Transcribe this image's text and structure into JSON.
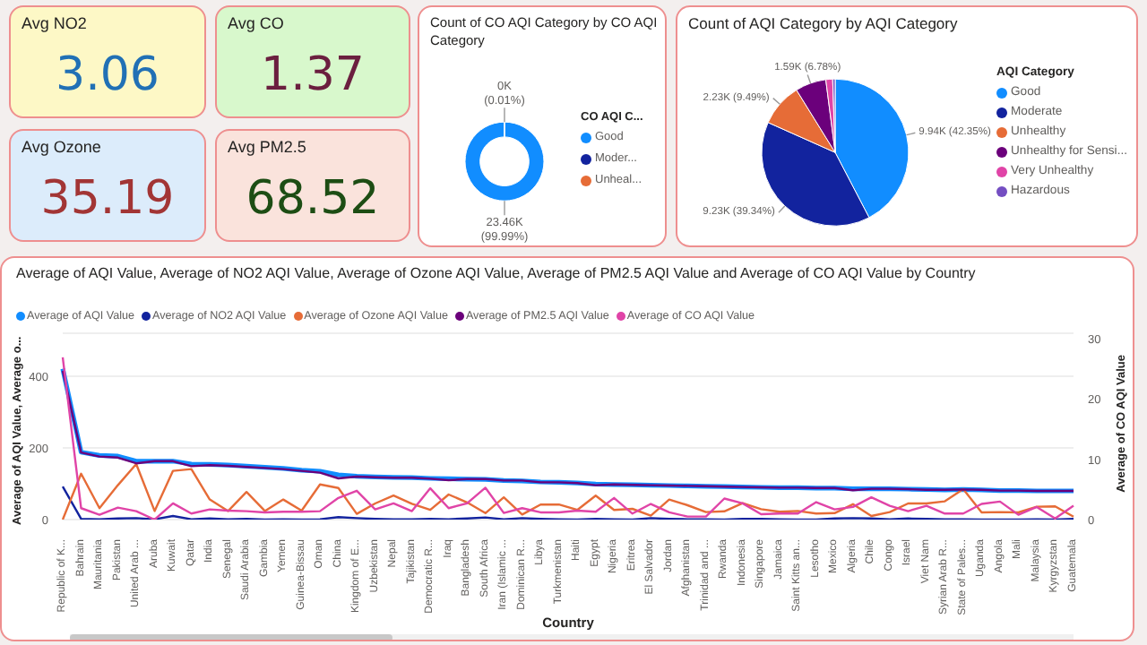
{
  "chart_data": [
    {
      "type": "other",
      "title": "Avg NO2",
      "values": [
        3.06
      ],
      "color": "#fdf8c6",
      "data_labels": true
    },
    {
      "type": "other",
      "title": "Avg CO",
      "values": [
        1.37
      ],
      "color": "#d8f8cc",
      "data_labels": true
    },
    {
      "type": "other",
      "title": "Avg Ozone",
      "values": [
        35.19
      ],
      "color": "#dcecfb",
      "data_labels": true
    },
    {
      "type": "other",
      "title": "Avg PM2.5",
      "values": [
        68.52
      ],
      "color": "#fae3dc",
      "data_labels": true
    },
    {
      "type": "donut",
      "title": "Count of CO AQI Category by CO AQI Category",
      "legend_title": "CO AQI C...",
      "legend": "right",
      "categories": [
        "Good",
        "Moder...",
        "Unheal..."
      ],
      "values": [
        99.99,
        0.01,
        0
      ],
      "colors": [
        "#118dff",
        "#12239e",
        "#e66c37"
      ],
      "value_labels": [
        "23.46K (99.99%)",
        "0K (0.01%)",
        null
      ]
    },
    {
      "type": "pie",
      "title": "Count of AQI Category by AQI Category",
      "legend_title": "AQI Category",
      "legend": "right",
      "categories": [
        "Good",
        "Moderate",
        "Unhealthy",
        "Unhealthy for Sensi...",
        "Very Unhealthy",
        "Hazardous"
      ],
      "values": [
        42.35,
        39.34,
        9.49,
        6.78,
        1.5,
        0.54
      ],
      "colors": [
        "#118dff",
        "#12239e",
        "#e66c37",
        "#6b007b",
        "#e044a7",
        "#744ec2"
      ],
      "value_labels": [
        "9.94K (42.35%)",
        "9.23K (39.34%)",
        "2.23K (9.49%)",
        "1.59K (6.78%)",
        null,
        null
      ]
    },
    {
      "type": "line",
      "title": "Average of AQI Value, Average of NO2 AQI Value, Average of Ozone AQI Value, Average of PM2.5 AQI Value and Average of CO AQI Value by Country",
      "xlabel": "Country",
      "ylabel": "Average of AQI Value, Average o...",
      "y2label": "Average of CO AQI Value",
      "legend": "top left",
      "grid": "y",
      "marker": "none",
      "ylim": [
        0,
        520
      ],
      "yticks": [
        0,
        200,
        400
      ],
      "y2lim": [
        0,
        31
      ],
      "y2ticks": [
        0,
        10,
        20,
        30
      ],
      "categories": [
        "Republic of K...",
        "Bahrain",
        "Mauritania",
        "Pakistan",
        "United Arab ...",
        "Aruba",
        "Kuwait",
        "Qatar",
        "India",
        "Senegal",
        "Saudi Arabia",
        "Gambia",
        "Yemen",
        "Guinea-Bissau",
        "Oman",
        "China",
        "Kingdom of E...",
        "Uzbekistan",
        "Nepal",
        "Tajikistan",
        "Democratic R...",
        "Iraq",
        "Bangladesh",
        "South Africa",
        "Iran (Islamic ...",
        "Dominican R...",
        "Libya",
        "Turkmenistan",
        "Haiti",
        "Egypt",
        "Nigeria",
        "Eritrea",
        "El Salvador",
        "Jordan",
        "Afghanistan",
        "Trinidad and ...",
        "Rwanda",
        "Indonesia",
        "Singapore",
        "Jamaica",
        "Saint Kitts an...",
        "Lesotho",
        "Mexico",
        "Algeria",
        "Chile",
        "Congo",
        "Israel",
        "Viet Nam",
        "Syrian Arab R...",
        "State of Pales...",
        "Uganda",
        "Angola",
        "Mali",
        "Malaysia",
        "Kyrgyzstan",
        "Guatemala"
      ],
      "series": [
        {
          "name": "Average of AQI Value",
          "color": "#118dff",
          "values": [
            421,
            188,
            179,
            177,
            163,
            163,
            163,
            155,
            154,
            152,
            149,
            146,
            143,
            138,
            135,
            125,
            121,
            119,
            118,
            117,
            115,
            114,
            113,
            112,
            109,
            108,
            105,
            104,
            102,
            99,
            98,
            97,
            96,
            95,
            94,
            93,
            92,
            91,
            90,
            89,
            89,
            88,
            88,
            86,
            86,
            86,
            85,
            84,
            83,
            84,
            83,
            81,
            81,
            80,
            80,
            80
          ]
        },
        {
          "name": "Average of NO2 AQI Value",
          "color": "#12239e",
          "values": [
            92,
            2,
            1,
            3,
            4,
            1,
            10,
            1,
            3,
            1,
            2,
            0,
            1,
            0,
            1,
            7,
            4,
            2,
            1,
            1,
            2,
            1,
            3,
            6,
            1,
            4,
            2,
            1,
            0,
            2,
            1,
            0,
            4,
            2,
            1,
            1,
            0,
            2,
            2,
            1,
            0,
            0,
            3,
            4,
            3,
            1,
            3,
            2,
            1,
            1,
            0,
            0,
            0,
            1,
            0,
            2
          ]
        },
        {
          "name": "Average of Ozone AQI Value",
          "color": "#e66c37",
          "values": [
            0,
            128,
            32,
            96,
            155,
            24,
            136,
            141,
            56,
            24,
            77,
            24,
            56,
            25,
            98,
            88,
            16,
            45,
            67,
            44,
            27,
            70,
            48,
            18,
            62,
            14,
            42,
            42,
            27,
            67,
            27,
            30,
            11,
            56,
            40,
            21,
            23,
            46,
            29,
            22,
            24,
            17,
            18,
            43,
            10,
            21,
            45,
            45,
            51,
            85,
            20,
            21,
            20,
            36,
            37,
            8
          ]
        },
        {
          "name": "Average of PM2.5 AQI Value",
          "color": "#6b007b",
          "values": [
            415,
            187,
            176,
            173,
            157,
            163,
            163,
            149,
            152,
            150,
            147,
            144,
            141,
            136,
            131,
            115,
            120,
            118,
            117,
            117,
            114,
            110,
            113,
            113,
            109,
            109,
            104,
            104,
            102,
            96,
            98,
            97,
            96,
            95,
            94,
            93,
            92,
            91,
            90,
            89,
            89,
            88,
            88,
            82,
            86,
            86,
            85,
            83,
            83,
            84,
            83,
            81,
            81,
            80,
            80,
            80
          ]
        },
        {
          "name": "Average of CO AQI Value",
          "color": "#e044a7",
          "axis": "y2",
          "values": [
            27,
            1.9,
            0.8,
            2.0,
            1.4,
            0,
            2.7,
            1.0,
            1.7,
            1.5,
            1.4,
            1.2,
            1.3,
            1.3,
            1.4,
            3.6,
            4.8,
            1.7,
            2.7,
            1.4,
            5.2,
            1.9,
            2.7,
            5.3,
            1.1,
            1.9,
            1.2,
            1.2,
            1.5,
            1.3,
            3.6,
            1.0,
            2.6,
            1.2,
            0.5,
            0.5,
            3.5,
            2.7,
            0.9,
            1.0,
            1.0,
            2.9,
            1.7,
            2.1,
            3.7,
            2.3,
            1.4,
            2.3,
            1.0,
            1.0,
            2.6,
            3.0,
            0.8,
            2.1,
            0.2,
            2.3
          ]
        }
      ]
    }
  ]
}
